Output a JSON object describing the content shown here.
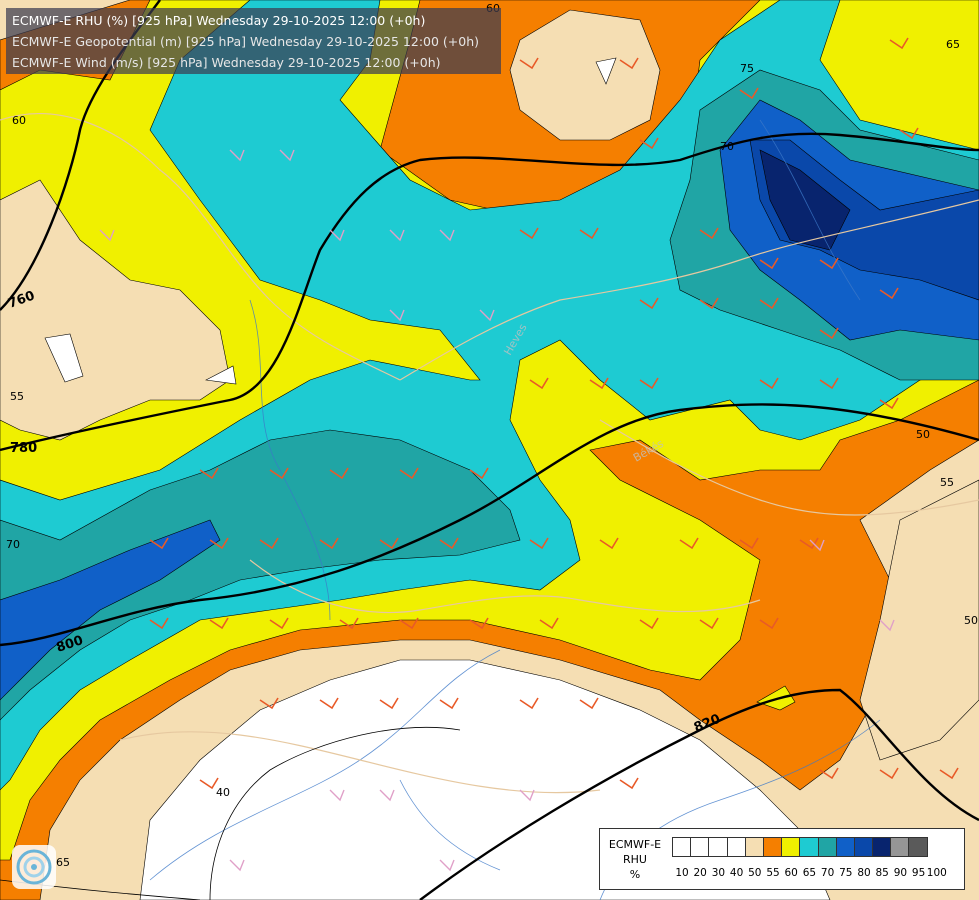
{
  "titles": {
    "line1": "ECMWF-E RHU (%) [925 hPa] Wednesday 29-10-2025 12:00 (+0h)",
    "line2": "ECMWF-E Geopotential (m) [925 hPa] Wednesday 29-10-2025 12:00 (+0h)",
    "line3": "ECMWF-E Wind (m/s) [925 hPa] Wednesday 29-10-2025 12:00 (+0h)"
  },
  "legend": {
    "title_line1": "ECMWF-E",
    "title_line2": "RHU",
    "title_line3": "%",
    "ticks": [
      "10",
      "20",
      "30",
      "40",
      "50",
      "55",
      "60",
      "65",
      "70",
      "75",
      "80",
      "85",
      "90",
      "95",
      "100"
    ],
    "colors": [
      "#ffffff",
      "#ffffff",
      "#ffffff",
      "#ffffff",
      "#f5deb3",
      "#f57f00",
      "#f0f000",
      "#1ecbd2",
      "#20a5a5",
      "#1060c8",
      "#0a48aa",
      "#08246e",
      "#969696",
      "#5a5a5a"
    ]
  },
  "geopotential_labels": [
    "760",
    "780",
    "800",
    "820"
  ],
  "rhu_labels": [
    "60",
    "65",
    "70",
    "75",
    "55",
    "50",
    "40",
    "65",
    "70",
    "60",
    "55",
    "50"
  ],
  "region_labels": [
    "Heves",
    "Békés"
  ],
  "colors": {
    "rhu_40": "#ffffff",
    "rhu_50": "#f5deb3",
    "rhu_55": "#f57f00",
    "rhu_60": "#f0f000",
    "rhu_65": "#1ecbd2",
    "rhu_70": "#20a5a5",
    "rhu_75": "#1060c8",
    "rhu_80": "#0a48aa",
    "rhu_85": "#08246e",
    "wind_barb": "#e85a28",
    "wind_barb_light": "#e0a0c8",
    "geopotential_line": "#000000",
    "border": "#e6c8a0",
    "river": "#3c78c8"
  }
}
